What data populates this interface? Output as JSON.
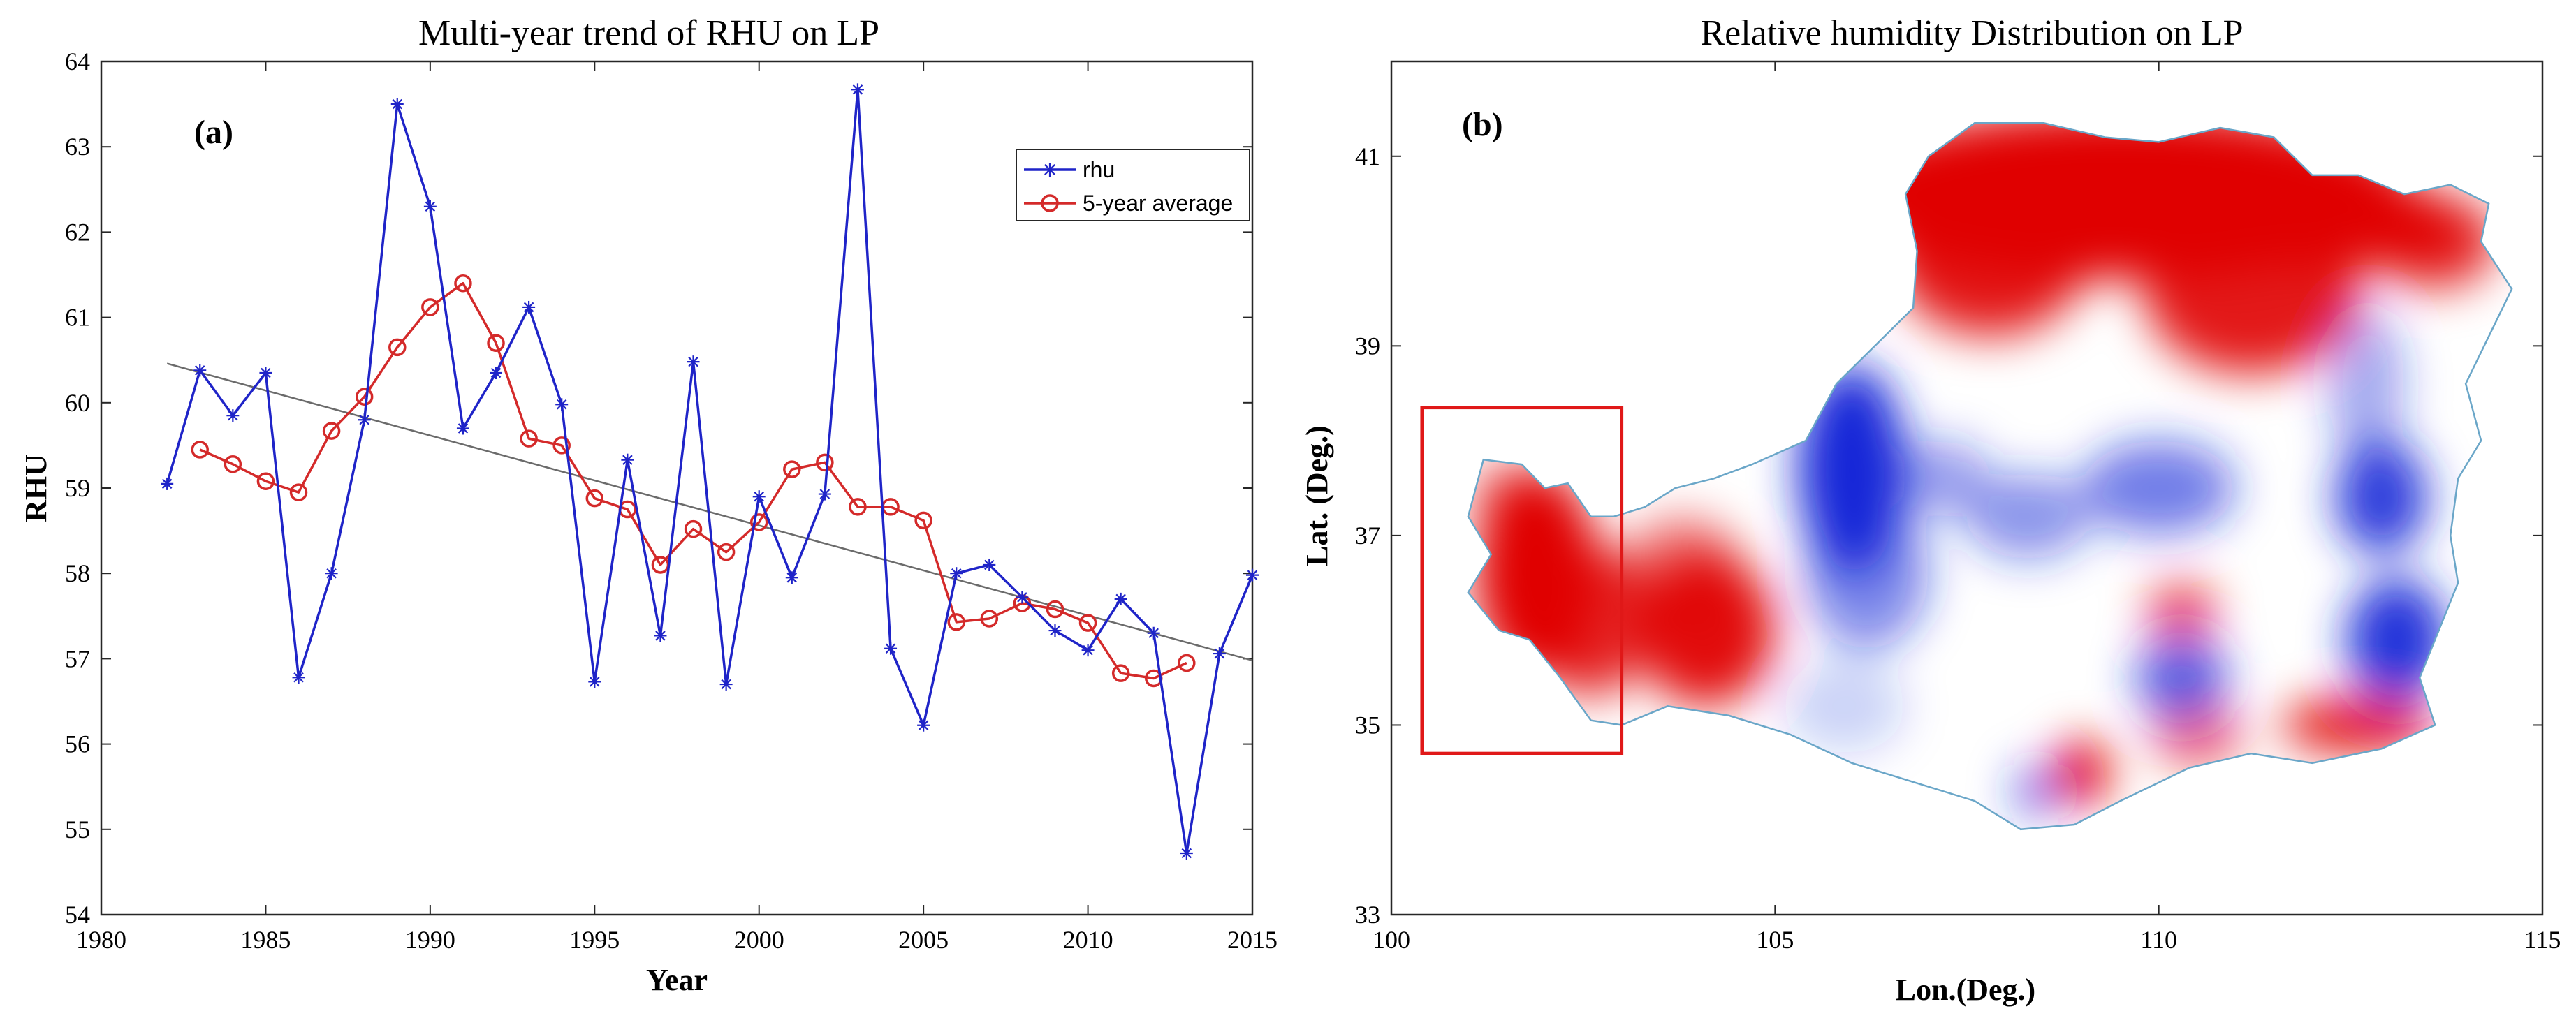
{
  "colors": {
    "rhu": "#1f24c8",
    "avg": "#d42a2a",
    "trend": "#6b6b6b",
    "box": "#e01818",
    "high": "#c00000",
    "low": "#1020c8",
    "outline": "#6aa6c8"
  },
  "chart_data": [
    {
      "type": "line",
      "panel_label": "(a)",
      "title": "Multi-year trend of RHU on LP",
      "xlabel": "Year",
      "ylabel": "RHU",
      "xlim": [
        1980,
        2015
      ],
      "ylim": [
        54,
        64
      ],
      "xticks": [
        1980,
        1985,
        1990,
        1995,
        2000,
        2005,
        2010,
        2015
      ],
      "yticks": [
        54,
        55,
        56,
        57,
        58,
        59,
        60,
        61,
        62,
        63,
        64
      ],
      "legend_position": "top-right",
      "series": [
        {
          "name": "rhu",
          "marker": "asterisk",
          "x": [
            1982,
            1983,
            1984,
            1985,
            1986,
            1987,
            1988,
            1989,
            1990,
            1991,
            1992,
            1993,
            1994,
            1995,
            1996,
            1997,
            1998,
            1999,
            2000,
            2001,
            2002,
            2003,
            2004,
            2005,
            2006,
            2007,
            2008,
            2009,
            2010,
            2011,
            2012,
            2013,
            2014,
            2015
          ],
          "values": [
            59.05,
            60.38,
            59.85,
            60.35,
            56.78,
            58.0,
            59.8,
            63.5,
            62.3,
            59.7,
            60.35,
            61.12,
            59.98,
            56.73,
            59.33,
            57.27,
            60.48,
            56.7,
            58.9,
            57.95,
            58.93,
            63.67,
            57.12,
            56.22,
            58.0,
            58.1,
            57.72,
            57.33,
            57.1,
            57.7,
            57.3,
            54.72,
            57.06,
            57.98
          ]
        },
        {
          "name": "5-year average",
          "marker": "circle",
          "x": [
            1983,
            1984,
            1985,
            1986,
            1987,
            1988,
            1989,
            1990,
            1991,
            1992,
            1993,
            1994,
            1995,
            1996,
            1997,
            1998,
            1999,
            2000,
            2001,
            2002,
            2003,
            2004,
            2005,
            2006,
            2007,
            2008,
            2009,
            2010,
            2011,
            2012,
            2013
          ],
          "values": [
            59.45,
            59.28,
            59.08,
            58.95,
            59.67,
            60.07,
            60.65,
            61.12,
            61.4,
            60.7,
            59.58,
            59.5,
            58.88,
            58.75,
            58.1,
            58.52,
            58.25,
            58.6,
            59.22,
            59.3,
            58.78,
            58.78,
            58.62,
            57.43,
            57.47,
            57.65,
            57.58,
            57.42,
            56.83,
            56.77,
            56.95
          ]
        }
      ],
      "trend_line": {
        "x": [
          1982,
          2015
        ],
        "values": [
          60.46,
          56.98
        ]
      }
    },
    {
      "type": "heatmap",
      "panel_label": "(b)",
      "title": "Relative humidity Distribution on LP",
      "xlabel": "Lon.(Deg.)",
      "ylabel": "Lat. (Deg.)",
      "xlim": [
        100,
        115
      ],
      "ylim": [
        33,
        42
      ],
      "xticks": [
        100,
        105,
        110,
        115
      ],
      "yticks": [
        33,
        35,
        37,
        39,
        41
      ],
      "highlight_box": {
        "lon": [
          100.4,
          103.0
        ],
        "lat": [
          34.7,
          38.35
        ]
      }
    }
  ]
}
